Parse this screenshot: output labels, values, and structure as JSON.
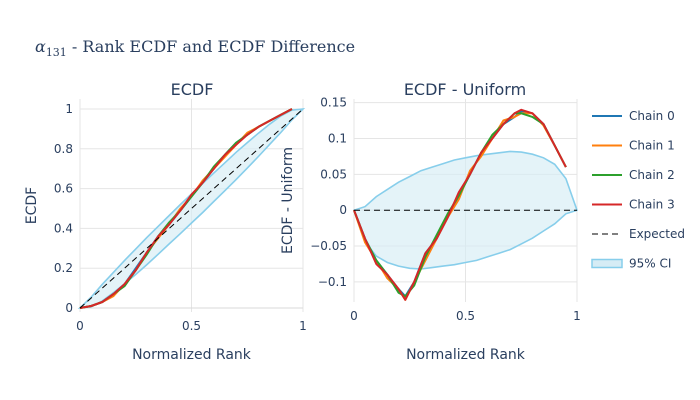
{
  "figure": {
    "title_symbol": "α",
    "title_subscript": "131",
    "title_rest": " - Rank ECDF and ECDF Difference"
  },
  "colors": {
    "chain_0": "#1f77b4",
    "chain_1": "#ff7f0e",
    "chain_2": "#2ca02c",
    "chain_3": "#d62728",
    "expected": "#000000",
    "ci_line": "#87ceeb",
    "ci_fill": "#d6ecf5"
  },
  "chart_data": [
    {
      "type": "line",
      "title": "ECDF",
      "xlabel": "Normalized Rank",
      "ylabel": "ECDF",
      "xlim": [
        0,
        1
      ],
      "ylim": [
        -0.02,
        1.05
      ],
      "xticks": [
        0,
        0.5,
        1
      ],
      "xtick_labels": [
        "0",
        "0.5",
        "1"
      ],
      "yticks": [
        0,
        0.2,
        0.4,
        0.6,
        0.8,
        1
      ],
      "ytick_labels": [
        "0",
        "0.2",
        "0.4",
        "0.6",
        "0.8",
        "1"
      ],
      "grid": true,
      "series": [
        {
          "name": "Chain 0",
          "color_key": "chain_0",
          "x": [
            0,
            0.05,
            0.1,
            0.15,
            0.2,
            0.25,
            0.3,
            0.35,
            0.4,
            0.45,
            0.5,
            0.55,
            0.6,
            0.65,
            0.7,
            0.75,
            0.8,
            0.85,
            0.9,
            0.95
          ],
          "y": [
            0,
            0.01,
            0.03,
            0.07,
            0.12,
            0.2,
            0.28,
            0.36,
            0.42,
            0.49,
            0.56,
            0.63,
            0.7,
            0.77,
            0.83,
            0.87,
            0.91,
            0.94,
            0.97,
            1.0
          ]
        },
        {
          "name": "Chain 1",
          "color_key": "chain_1",
          "x": [
            0,
            0.05,
            0.1,
            0.15,
            0.2,
            0.25,
            0.3,
            0.35,
            0.4,
            0.45,
            0.5,
            0.55,
            0.6,
            0.65,
            0.7,
            0.75,
            0.8,
            0.85,
            0.9,
            0.95
          ],
          "y": [
            0,
            0.01,
            0.03,
            0.06,
            0.12,
            0.19,
            0.28,
            0.35,
            0.42,
            0.5,
            0.56,
            0.64,
            0.7,
            0.76,
            0.82,
            0.88,
            0.91,
            0.94,
            0.97,
            1.0
          ]
        },
        {
          "name": "Chain 2",
          "color_key": "chain_2",
          "x": [
            0,
            0.05,
            0.1,
            0.15,
            0.2,
            0.25,
            0.3,
            0.35,
            0.4,
            0.45,
            0.5,
            0.55,
            0.6,
            0.65,
            0.7,
            0.75,
            0.8,
            0.85,
            0.9,
            0.95
          ],
          "y": [
            0,
            0.01,
            0.03,
            0.07,
            0.11,
            0.19,
            0.27,
            0.36,
            0.43,
            0.49,
            0.56,
            0.63,
            0.71,
            0.77,
            0.83,
            0.87,
            0.91,
            0.94,
            0.97,
            1.0
          ]
        },
        {
          "name": "Chain 3",
          "color_key": "chain_3",
          "x": [
            0,
            0.05,
            0.1,
            0.15,
            0.2,
            0.25,
            0.3,
            0.35,
            0.4,
            0.45,
            0.5,
            0.55,
            0.6,
            0.65,
            0.7,
            0.75,
            0.8,
            0.85,
            0.9,
            0.95
          ],
          "y": [
            0,
            0.01,
            0.03,
            0.07,
            0.12,
            0.19,
            0.28,
            0.36,
            0.42,
            0.49,
            0.57,
            0.63,
            0.7,
            0.77,
            0.82,
            0.87,
            0.91,
            0.94,
            0.97,
            1.0
          ]
        },
        {
          "name": "Expected",
          "color_key": "expected",
          "dash": true,
          "x": [
            0,
            1
          ],
          "y": [
            0,
            1
          ]
        }
      ],
      "band": {
        "name": "95% CI",
        "x": [
          0,
          0.05,
          0.1,
          0.15,
          0.2,
          0.25,
          0.3,
          0.35,
          0.4,
          0.45,
          0.5,
          0.55,
          0.6,
          0.65,
          0.7,
          0.75,
          0.8,
          0.85,
          0.9,
          0.95,
          1
        ],
        "lower": [
          0,
          0.006,
          0.036,
          0.077,
          0.122,
          0.169,
          0.218,
          0.27,
          0.322,
          0.374,
          0.427,
          0.48,
          0.535,
          0.59,
          0.645,
          0.703,
          0.761,
          0.821,
          0.881,
          0.945,
          1
        ],
        "upper": [
          0,
          0.055,
          0.119,
          0.179,
          0.239,
          0.297,
          0.355,
          0.41,
          0.465,
          0.52,
          0.573,
          0.626,
          0.678,
          0.73,
          0.782,
          0.831,
          0.878,
          0.923,
          0.964,
          0.994,
          1
        ]
      }
    },
    {
      "type": "line",
      "title": "ECDF - Uniform",
      "xlabel": "Normalized Rank",
      "ylabel": "ECDF - Uniform",
      "xlim": [
        0,
        1
      ],
      "ylim": [
        -0.128,
        0.155
      ],
      "xticks": [
        0,
        0.5,
        1
      ],
      "xtick_labels": [
        "0",
        "0.5",
        "1"
      ],
      "yticks": [
        -0.1,
        -0.05,
        0,
        0.05,
        0.1,
        0.15
      ],
      "ytick_labels": [
        "−0.1",
        "−0.05",
        "0",
        "0.05",
        "0.1",
        "0.15"
      ],
      "grid": true,
      "series": [
        {
          "name": "Chain 0",
          "color_key": "chain_0",
          "x": [
            0,
            0.05,
            0.1,
            0.15,
            0.2,
            0.23,
            0.27,
            0.32,
            0.37,
            0.42,
            0.47,
            0.52,
            0.57,
            0.62,
            0.67,
            0.72,
            0.75,
            0.8,
            0.85,
            0.9,
            0.95
          ],
          "y": [
            0,
            -0.04,
            -0.07,
            -0.09,
            -0.11,
            -0.12,
            -0.1,
            -0.06,
            -0.04,
            -0.01,
            0.02,
            0.05,
            0.08,
            0.1,
            0.12,
            0.13,
            0.138,
            0.135,
            0.12,
            0.09,
            0.06
          ]
        },
        {
          "name": "Chain 1",
          "color_key": "chain_1",
          "x": [
            0,
            0.05,
            0.1,
            0.15,
            0.2,
            0.23,
            0.27,
            0.32,
            0.37,
            0.42,
            0.47,
            0.52,
            0.57,
            0.62,
            0.67,
            0.72,
            0.75,
            0.8,
            0.85,
            0.9,
            0.95
          ],
          "y": [
            0,
            -0.045,
            -0.07,
            -0.095,
            -0.11,
            -0.125,
            -0.1,
            -0.07,
            -0.04,
            -0.01,
            0.015,
            0.055,
            0.075,
            0.1,
            0.125,
            0.13,
            0.135,
            0.135,
            0.118,
            0.09,
            0.06
          ]
        },
        {
          "name": "Chain 2",
          "color_key": "chain_2",
          "x": [
            0,
            0.05,
            0.1,
            0.15,
            0.2,
            0.23,
            0.27,
            0.32,
            0.37,
            0.42,
            0.47,
            0.52,
            0.57,
            0.62,
            0.67,
            0.72,
            0.75,
            0.8,
            0.85,
            0.9,
            0.95
          ],
          "y": [
            0,
            -0.04,
            -0.07,
            -0.09,
            -0.115,
            -0.12,
            -0.105,
            -0.065,
            -0.035,
            -0.005,
            0.02,
            0.05,
            0.08,
            0.105,
            0.12,
            0.135,
            0.135,
            0.13,
            0.12,
            0.09,
            0.06
          ]
        },
        {
          "name": "Chain 3",
          "color_key": "chain_3",
          "x": [
            0,
            0.05,
            0.1,
            0.15,
            0.2,
            0.23,
            0.27,
            0.32,
            0.37,
            0.42,
            0.47,
            0.52,
            0.57,
            0.62,
            0.67,
            0.72,
            0.75,
            0.8,
            0.85,
            0.9,
            0.95
          ],
          "y": [
            0,
            -0.04,
            -0.075,
            -0.09,
            -0.11,
            -0.125,
            -0.1,
            -0.06,
            -0.04,
            -0.01,
            0.025,
            0.05,
            0.08,
            0.1,
            0.12,
            0.135,
            0.14,
            0.135,
            0.12,
            0.09,
            0.06
          ]
        },
        {
          "name": "Expected",
          "color_key": "expected",
          "dash": true,
          "x": [
            0,
            1
          ],
          "y": [
            0,
            0
          ]
        }
      ],
      "band": {
        "name": "95% CI",
        "x": [
          0,
          0.05,
          0.1,
          0.15,
          0.2,
          0.25,
          0.3,
          0.35,
          0.4,
          0.45,
          0.5,
          0.55,
          0.6,
          0.65,
          0.7,
          0.75,
          0.8,
          0.85,
          0.9,
          0.95,
          1
        ],
        "lower": [
          0,
          -0.044,
          -0.064,
          -0.073,
          -0.078,
          -0.081,
          -0.082,
          -0.08,
          -0.078,
          -0.076,
          -0.073,
          -0.07,
          -0.065,
          -0.06,
          -0.055,
          -0.047,
          -0.039,
          -0.029,
          -0.019,
          -0.005,
          0
        ],
        "upper": [
          0,
          0.005,
          0.019,
          0.029,
          0.039,
          0.047,
          0.055,
          0.06,
          0.065,
          0.07,
          0.073,
          0.076,
          0.078,
          0.08,
          0.082,
          0.081,
          0.078,
          0.073,
          0.064,
          0.044,
          0
        ]
      }
    }
  ],
  "legend": {
    "placement": "right",
    "items": [
      {
        "label": "Chain 0",
        "color_key": "chain_0",
        "kind": "line"
      },
      {
        "label": "Chain 1",
        "color_key": "chain_1",
        "kind": "line"
      },
      {
        "label": "Chain 2",
        "color_key": "chain_2",
        "kind": "line"
      },
      {
        "label": "Chain 3",
        "color_key": "chain_3",
        "kind": "line"
      },
      {
        "label": "Expected",
        "color_key": "expected",
        "kind": "dash"
      },
      {
        "label": "95% CI",
        "color_key": "ci_line",
        "kind": "band"
      }
    ]
  }
}
